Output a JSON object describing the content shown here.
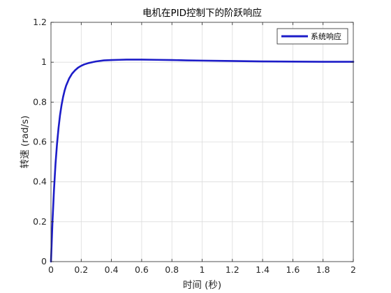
{
  "chart_data": {
    "type": "line",
    "title": "电机在PID控制下的阶跃响应",
    "xlabel": "时间 (秒)",
    "ylabel": "转速 (rad/s)",
    "xlim": [
      0,
      2
    ],
    "ylim": [
      0,
      1.2
    ],
    "xticks": [
      "0",
      "0.2",
      "0.4",
      "0.6",
      "0.8",
      "1",
      "1.2",
      "1.4",
      "1.6",
      "1.8",
      "2"
    ],
    "yticks": [
      "0",
      "0.2",
      "0.4",
      "0.6",
      "0.8",
      "1",
      "1.2"
    ],
    "grid": true,
    "legend_position": "top-right",
    "series": [
      {
        "name": "系统响应",
        "color": "#1c1cc8",
        "x": [
          0,
          0.01,
          0.02,
          0.03,
          0.04,
          0.05,
          0.06,
          0.07,
          0.08,
          0.09,
          0.1,
          0.12,
          0.14,
          0.16,
          0.18,
          0.2,
          0.22,
          0.25,
          0.28,
          0.3,
          0.35,
          0.4,
          0.45,
          0.5,
          0.55,
          0.6,
          0.7,
          0.8,
          0.9,
          1.0,
          1.2,
          1.4,
          1.6,
          1.8,
          2.0
        ],
        "y": [
          0,
          0.2,
          0.36,
          0.49,
          0.59,
          0.67,
          0.735,
          0.785,
          0.825,
          0.857,
          0.882,
          0.918,
          0.943,
          0.96,
          0.973,
          0.982,
          0.989,
          0.996,
          1.001,
          1.004,
          1.009,
          1.011,
          1.012,
          1.013,
          1.013,
          1.013,
          1.012,
          1.011,
          1.009,
          1.008,
          1.006,
          1.004,
          1.003,
          1.002,
          1.002
        ]
      }
    ]
  }
}
